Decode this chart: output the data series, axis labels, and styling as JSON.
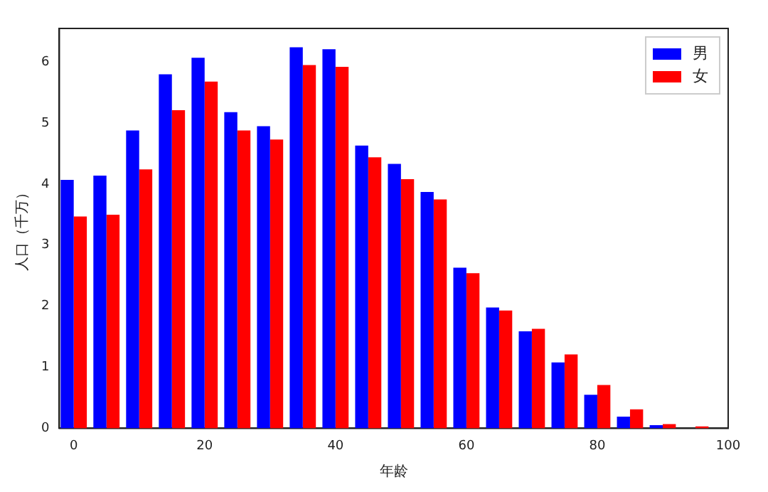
{
  "chart_data": {
    "type": "bar",
    "xlabel": "年龄",
    "ylabel": "人口（千万）",
    "x": [
      0,
      5,
      10,
      15,
      20,
      25,
      30,
      35,
      40,
      45,
      50,
      55,
      60,
      65,
      70,
      75,
      80,
      85,
      90,
      95
    ],
    "series": [
      {
        "name": "男",
        "color": "#0000ff",
        "values": [
          4.07,
          4.14,
          4.88,
          5.8,
          6.07,
          5.18,
          4.95,
          6.24,
          6.21,
          4.63,
          4.33,
          3.87,
          2.63,
          1.98,
          1.59,
          1.08,
          0.55,
          0.19,
          0.05,
          null
        ]
      },
      {
        "name": "女",
        "color": "#ff0000",
        "values": [
          3.47,
          3.5,
          4.24,
          5.21,
          5.68,
          4.88,
          4.73,
          5.95,
          5.92,
          4.44,
          4.08,
          3.75,
          2.54,
          1.93,
          1.63,
          1.21,
          0.71,
          0.31,
          0.07,
          0.03
        ]
      }
    ],
    "xlim": [
      -2.2,
      100
    ],
    "xticks": [
      0,
      20,
      40,
      60,
      80,
      100
    ],
    "ylim": [
      0,
      6.55
    ],
    "yticks": [
      0,
      1,
      2,
      3,
      4,
      5,
      6
    ],
    "grid": false,
    "legend": "top right"
  }
}
